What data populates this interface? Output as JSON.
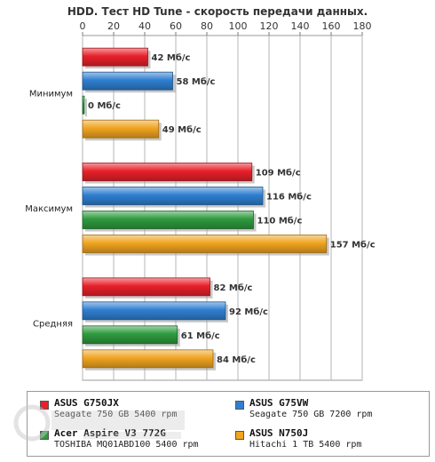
{
  "chart_data": {
    "type": "bar",
    "orientation": "horizontal",
    "title": "HDD. Тест HD Tune - скорость передачи данных.",
    "xlim": [
      0,
      180
    ],
    "xticks": [
      0,
      20,
      40,
      60,
      80,
      100,
      120,
      140,
      160,
      180
    ],
    "grid": true,
    "categories": [
      "Минимум",
      "Максимум",
      "Средняя"
    ],
    "value_unit": "Мб/с",
    "series": [
      {
        "name": "ASUS G750JX",
        "desc": "Seagate 750 GB 5400 rpm",
        "color": "#e8202a",
        "values": [
          42,
          109,
          82
        ]
      },
      {
        "name": "ASUS G75VW",
        "desc": "Seagate 750 GB 7200 rpm",
        "color": "#2f7fd0",
        "values": [
          58,
          116,
          92
        ]
      },
      {
        "name": "Acer Aspire V3 772G",
        "desc": "TOSHIBA MQ01ABD100 5400 rpm",
        "color": "#2e9a3e",
        "values": [
          0,
          110,
          61
        ]
      },
      {
        "name": "ASUS N750J",
        "desc": "Hitachi 1 TB 5400 rpm",
        "color": "#f0a420",
        "values": [
          49,
          157,
          84
        ]
      }
    ],
    "legend_position": "bottom"
  }
}
